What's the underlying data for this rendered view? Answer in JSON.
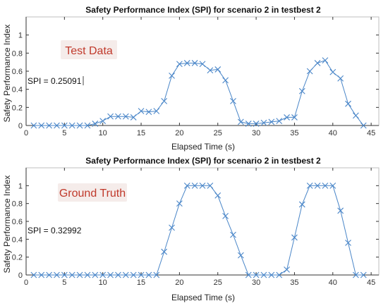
{
  "colors": {
    "series": "#4a86c8",
    "axes": "#333333",
    "grid": "#e6e6e6",
    "overlay_text": "#c0392b",
    "overlay_bg": "#f5ecea"
  },
  "chart_data": [
    {
      "type": "line",
      "marker": "x",
      "title": "Safety Performance Index (SPI) for scenario 2 in testbest 2",
      "xlabel": "Elapsed Time (s)",
      "ylabel": "Safety Performance Index",
      "xlim": [
        0,
        46
      ],
      "ylim": [
        0,
        1.2
      ],
      "xticks": [
        0,
        5,
        10,
        15,
        20,
        25,
        30,
        35,
        40,
        45
      ],
      "xtick_labels": [
        "0",
        "5",
        "10",
        "15",
        "20",
        "25",
        "30",
        "35",
        "40",
        "45"
      ],
      "yticks": [
        0,
        0.2,
        0.4,
        0.6,
        0.8,
        1
      ],
      "ytick_labels": [
        "0",
        "0.2",
        "0.4",
        "0.6",
        "0.8",
        "1"
      ],
      "grid": false,
      "overlay_label": "Test Data",
      "spi_text": "SPI = 0.25091",
      "series": [
        {
          "x": [
            1,
            2,
            3,
            4,
            5,
            6,
            7,
            8,
            9,
            10,
            11,
            12,
            13,
            14,
            15,
            16,
            17,
            18,
            19,
            20,
            21,
            22,
            23,
            24,
            25,
            26,
            27,
            28,
            29,
            30,
            31,
            32,
            33,
            34,
            35,
            36,
            37,
            38,
            39,
            40,
            41,
            42,
            43,
            44
          ],
          "y": [
            0,
            0,
            0,
            0,
            0,
            0,
            0,
            0,
            0.02,
            0.05,
            0.1,
            0.1,
            0.1,
            0.09,
            0.16,
            0.15,
            0.16,
            0.27,
            0.55,
            0.68,
            0.69,
            0.69,
            0.68,
            0.61,
            0.62,
            0.5,
            0.27,
            0.04,
            0.02,
            0.02,
            0.03,
            0.04,
            0.05,
            0.09,
            0.09,
            0.38,
            0.6,
            0.69,
            0.72,
            0.59,
            0.52,
            0.24,
            0.11,
            0
          ]
        }
      ]
    },
    {
      "type": "line",
      "marker": "x",
      "title": "Safety Performance Index (SPI) for scenario 2 in testbest 2",
      "xlabel": "Elapsed Time (s)",
      "ylabel": "Safety Performance Index",
      "xlim": [
        0,
        46
      ],
      "ylim": [
        0,
        1.2
      ],
      "xticks": [
        0,
        5,
        10,
        15,
        20,
        25,
        30,
        35,
        40,
        45
      ],
      "xtick_labels": [
        "0",
        "5",
        "10",
        "15",
        "20",
        "25",
        "30",
        "35",
        "40",
        "45"
      ],
      "yticks": [
        0,
        0.2,
        0.4,
        0.6,
        0.8,
        1
      ],
      "ytick_labels": [
        "0",
        "0.2",
        "0.4",
        "0.6",
        "0.8",
        "1"
      ],
      "grid": false,
      "overlay_label": "Ground Truth",
      "spi_text": "SPI = 0.32992",
      "series": [
        {
          "x": [
            1,
            2,
            3,
            4,
            5,
            6,
            7,
            8,
            9,
            10,
            11,
            12,
            13,
            14,
            15,
            16,
            17,
            18,
            19,
            20,
            21,
            22,
            23,
            24,
            25,
            26,
            27,
            28,
            29,
            30,
            31,
            32,
            33,
            34,
            35,
            36,
            37,
            38,
            39,
            40,
            41,
            42,
            43,
            44
          ],
          "y": [
            0,
            0,
            0,
            0,
            0,
            0,
            0,
            0,
            0,
            0,
            0,
            0,
            0,
            0,
            0,
            0,
            0,
            0.26,
            0.53,
            0.8,
            1,
            1,
            1,
            1,
            0.89,
            0.66,
            0.45,
            0.22,
            0,
            0,
            0,
            0,
            0,
            0.06,
            0.42,
            0.79,
            1,
            1,
            1,
            1,
            0.72,
            0.36,
            0,
            0
          ]
        }
      ]
    }
  ]
}
